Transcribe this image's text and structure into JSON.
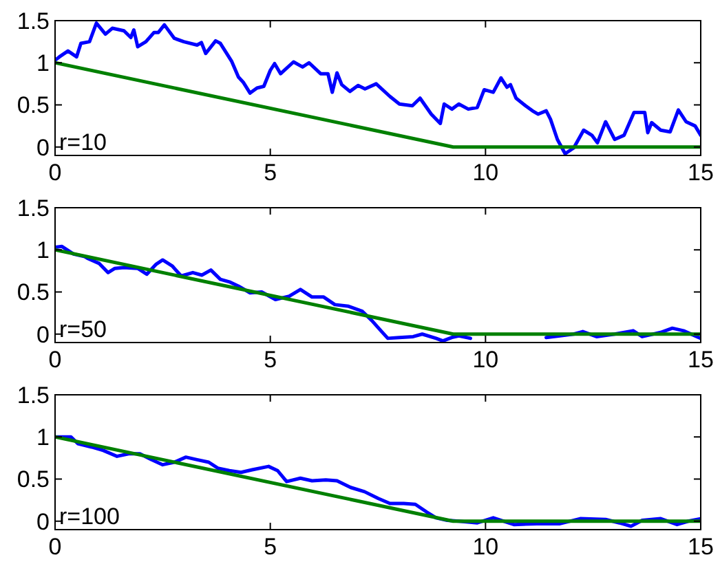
{
  "chart_data": [
    {
      "type": "line",
      "xlim": [
        0,
        15
      ],
      "ylim": [
        -0.1,
        1.5
      ],
      "xticks": [
        0,
        5,
        10,
        15
      ],
      "yticks": [
        0,
        0.5,
        1,
        1.5
      ],
      "annotations": [
        "r=10"
      ],
      "series": [
        {
          "color": "#0000ff",
          "x": [
            0,
            0.1,
            0.3,
            0.5,
            0.6,
            0.8,
            0.96,
            1.17,
            1.33,
            1.6,
            1.76,
            1.83,
            1.92,
            2.11,
            2.3,
            2.4,
            2.54,
            2.77,
            2.99,
            3.3,
            3.4,
            3.5,
            3.73,
            3.84,
            4.1,
            4.26,
            4.37,
            4.53,
            4.69,
            4.85,
            5.0,
            5.1,
            5.24,
            5.54,
            5.75,
            5.9,
            6.17,
            6.34,
            6.44,
            6.55,
            6.66,
            6.85,
            7.04,
            7.2,
            7.46,
            7.78,
            8.0,
            8.3,
            8.48,
            8.74,
            8.95,
            9.04,
            9.22,
            9.38,
            9.6,
            9.81,
            9.97,
            10.18,
            10.36,
            10.5,
            10.58,
            10.71,
            10.93,
            11.09,
            11.22,
            11.41,
            11.51,
            11.67,
            11.85,
            12.05,
            12.28,
            12.47,
            12.6,
            12.79,
            13.0,
            13.22,
            13.45,
            13.7,
            13.77,
            13.86,
            14.07,
            14.29,
            14.48,
            14.66,
            14.87,
            15
          ],
          "values": [
            1.03,
            1.07,
            1.14,
            1.07,
            1.23,
            1.25,
            1.47,
            1.34,
            1.41,
            1.38,
            1.3,
            1.39,
            1.19,
            1.25,
            1.36,
            1.36,
            1.45,
            1.29,
            1.25,
            1.21,
            1.24,
            1.11,
            1.26,
            1.23,
            1.02,
            0.83,
            0.77,
            0.64,
            0.7,
            0.72,
            0.91,
            0.99,
            0.87,
            1.01,
            0.95,
            1.0,
            0.87,
            0.87,
            0.65,
            0.88,
            0.74,
            0.66,
            0.73,
            0.69,
            0.75,
            0.6,
            0.51,
            0.49,
            0.58,
            0.39,
            0.28,
            0.51,
            0.45,
            0.51,
            0.45,
            0.47,
            0.68,
            0.65,
            0.82,
            0.71,
            0.74,
            0.58,
            0.49,
            0.43,
            0.39,
            0.43,
            0.33,
            0.09,
            -0.08,
            -0.01,
            0.2,
            0.14,
            0.05,
            0.3,
            0.09,
            0.14,
            0.41,
            0.41,
            0.17,
            0.29,
            0.2,
            0.18,
            0.44,
            0.3,
            0.25,
            0.14
          ]
        },
        {
          "color": "#008000",
          "x": [
            0,
            9.25,
            15
          ],
          "values": [
            1,
            0,
            0
          ]
        }
      ]
    },
    {
      "type": "line",
      "xlim": [
        0,
        15
      ],
      "ylim": [
        -0.1,
        1.5
      ],
      "xticks": [
        0,
        5,
        10,
        15
      ],
      "yticks": [
        0,
        0.5,
        1,
        1.5
      ],
      "annotations": [
        "r=50"
      ],
      "series": [
        {
          "color": "#0000ff",
          "x": [
            0,
            0.16,
            0.43,
            0.69,
            0.75,
            1.02,
            1.23,
            1.39,
            1.6,
            1.92,
            2.13,
            2.35,
            2.5,
            2.72,
            2.93,
            3.2,
            3.41,
            3.62,
            3.84,
            4.05,
            4.26,
            4.53,
            4.8,
            5.12,
            5.44,
            5.7,
            5.97,
            6.24,
            6.5,
            6.82,
            7.14,
            7.36,
            7.57,
            7.73,
            8.0,
            8.32,
            8.53,
            8.85,
            9.01,
            9.22,
            9.38,
            9.65,
            9.9,
            11.3,
            11.41,
            11.73,
            12.05,
            12.26,
            12.58,
            13.0,
            13.43,
            13.64,
            14.07,
            14.34,
            14.6,
            15
          ],
          "values": [
            1.03,
            1.04,
            0.95,
            0.92,
            0.9,
            0.84,
            0.73,
            0.78,
            0.79,
            0.78,
            0.71,
            0.83,
            0.88,
            0.81,
            0.69,
            0.73,
            0.7,
            0.76,
            0.65,
            0.62,
            0.57,
            0.49,
            0.5,
            0.41,
            0.45,
            0.53,
            0.44,
            0.44,
            0.35,
            0.33,
            0.27,
            0.16,
            0.04,
            -0.05,
            -0.04,
            -0.03,
            0.0,
            -0.05,
            -0.08,
            -0.04,
            -0.02,
            -0.05,
            null,
            null,
            -0.04,
            -0.02,
            0.0,
            0.03,
            -0.03,
            0.0,
            0.04,
            -0.03,
            0.02,
            0.07,
            0.04,
            -0.05
          ]
        },
        {
          "color": "#008000",
          "x": [
            0,
            9.25,
            15
          ],
          "values": [
            1,
            0,
            0
          ]
        }
      ]
    },
    {
      "type": "line",
      "xlim": [
        0,
        15
      ],
      "ylim": [
        -0.1,
        1.5
      ],
      "xticks": [
        0,
        5,
        10,
        15
      ],
      "yticks": [
        0,
        0.5,
        1,
        1.5
      ],
      "annotations": [
        "r=100"
      ],
      "series": [
        {
          "color": "#0000ff",
          "x": [
            0,
            0.37,
            0.53,
            0.85,
            1.12,
            1.44,
            1.71,
            1.97,
            2.24,
            2.5,
            2.77,
            3.04,
            3.3,
            3.57,
            3.78,
            4.05,
            4.32,
            4.58,
            4.96,
            5.17,
            5.38,
            5.7,
            5.97,
            6.29,
            6.55,
            6.87,
            7.19,
            7.51,
            7.78,
            8.1,
            8.37,
            8.63,
            8.85,
            9.11,
            9.38,
            9.81,
            10.18,
            10.66,
            11.2,
            11.73,
            12.2,
            12.79,
            13.11,
            13.38,
            13.64,
            14.07,
            14.45,
            14.71,
            15
          ],
          "values": [
            1.0,
            1.0,
            0.92,
            0.88,
            0.84,
            0.77,
            0.8,
            0.8,
            0.73,
            0.67,
            0.7,
            0.76,
            0.73,
            0.7,
            0.63,
            0.6,
            0.58,
            0.61,
            0.65,
            0.6,
            0.47,
            0.51,
            0.48,
            0.49,
            0.48,
            0.4,
            0.35,
            0.27,
            0.21,
            0.21,
            0.2,
            0.11,
            0.04,
            0.01,
            0.0,
            -0.02,
            0.04,
            -0.04,
            -0.03,
            -0.03,
            0.03,
            0.02,
            -0.02,
            -0.06,
            0.01,
            0.03,
            -0.04,
            0.0,
            0.03
          ]
        },
        {
          "color": "#008000",
          "x": [
            0,
            9.25,
            15
          ],
          "values": [
            1,
            0,
            0
          ]
        }
      ]
    }
  ]
}
